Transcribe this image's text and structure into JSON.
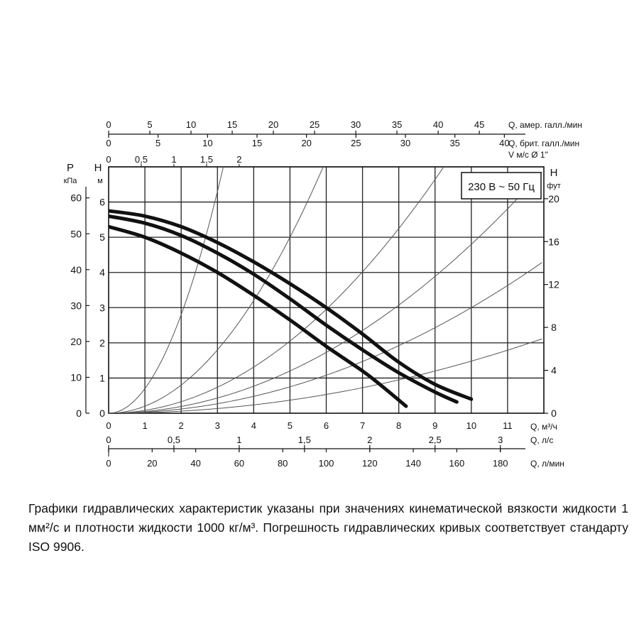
{
  "chart_data": {
    "type": "line",
    "legend_box": "230 В ~ 50 Гц",
    "axes": {
      "x_main": {
        "label": "Q, м³/ч",
        "range": [
          0,
          12
        ],
        "ticks": [
          "0",
          "1",
          "2",
          "3",
          "4",
          "5",
          "6",
          "7",
          "8",
          "9",
          "10",
          "11"
        ]
      },
      "x_ls": {
        "label": "Q, л/с",
        "ticks": [
          {
            "v": 0,
            "t": "0"
          },
          {
            "v": 0.5,
            "t": "0,5"
          },
          {
            "v": 1,
            "t": "1"
          },
          {
            "v": 1.5,
            "t": "1,5"
          },
          {
            "v": 2,
            "t": "2"
          },
          {
            "v": 2.5,
            "t": "2,5"
          },
          {
            "v": 3,
            "t": "3"
          }
        ]
      },
      "x_lmin": {
        "label": "Q, л/мин",
        "ticks": [
          {
            "v": 0,
            "t": "0"
          },
          {
            "v": 20,
            "t": "20"
          },
          {
            "v": 40,
            "t": "40"
          },
          {
            "v": 60,
            "t": "60"
          },
          {
            "v": 80,
            "t": "80"
          },
          {
            "v": 100,
            "t": "100"
          },
          {
            "v": 120,
            "t": "120"
          },
          {
            "v": 140,
            "t": "140"
          },
          {
            "v": 160,
            "t": "160"
          },
          {
            "v": 180,
            "t": "180"
          }
        ]
      },
      "x_us_gpm": {
        "label": "Q, амер. галл./мин",
        "ticks": [
          {
            "v": 0,
            "t": "0"
          },
          {
            "v": 5,
            "t": "5"
          },
          {
            "v": 10,
            "t": "10"
          },
          {
            "v": 15,
            "t": "15"
          },
          {
            "v": 20,
            "t": "20"
          },
          {
            "v": 25,
            "t": "25"
          },
          {
            "v": 30,
            "t": "30"
          },
          {
            "v": 35,
            "t": "35"
          },
          {
            "v": 40,
            "t": "40"
          },
          {
            "v": 45,
            "t": "45"
          }
        ]
      },
      "x_uk_gpm": {
        "label": "Q, брит. галл./мин",
        "ticks": [
          {
            "v": 0,
            "t": "0"
          },
          {
            "v": 5,
            "t": "5"
          },
          {
            "v": 10,
            "t": "10"
          },
          {
            "v": 15,
            "t": "15"
          },
          {
            "v": 20,
            "t": "20"
          },
          {
            "v": 25,
            "t": "25"
          },
          {
            "v": 30,
            "t": "30"
          },
          {
            "v": 35,
            "t": "35"
          },
          {
            "v": 40,
            "t": "40"
          }
        ]
      },
      "x_velocity": {
        "label": "V м/с Ø 1\"",
        "ticks": [
          {
            "v": 0,
            "t": "0"
          },
          {
            "v": 0.5,
            "t": "0,5"
          },
          {
            "v": 1,
            "t": "1"
          },
          {
            "v": 1.5,
            "t": "1,5"
          },
          {
            "v": 2,
            "t": "2"
          }
        ]
      },
      "y_main": {
        "label_top": "H",
        "unit": "м",
        "range": [
          0,
          7
        ],
        "ticks": [
          "0",
          "1",
          "2",
          "3",
          "4",
          "5",
          "6"
        ]
      },
      "y_kpa": {
        "label_top": "P",
        "unit": "кПа",
        "ticks": [
          "0",
          "10",
          "20",
          "30",
          "40",
          "50",
          "60"
        ]
      },
      "y_ft": {
        "label_top": "H",
        "unit": "фут",
        "ticks": [
          "0",
          "4",
          "8",
          "12",
          "16",
          "20"
        ]
      }
    },
    "series": [
      {
        "values": [
          [
            0,
            5.75
          ],
          [
            1,
            5.6
          ],
          [
            2,
            5.3
          ],
          [
            3,
            4.85
          ],
          [
            4,
            4.3
          ],
          [
            5,
            3.68
          ],
          [
            6,
            3.0
          ],
          [
            7,
            2.25
          ],
          [
            8,
            1.45
          ],
          [
            9,
            0.82
          ],
          [
            10,
            0.4
          ]
        ]
      },
      {
        "values": [
          [
            0,
            5.6
          ],
          [
            1,
            5.4
          ],
          [
            2,
            5.05
          ],
          [
            3,
            4.55
          ],
          [
            4,
            3.95
          ],
          [
            5,
            3.25
          ],
          [
            6,
            2.5
          ],
          [
            7,
            1.8
          ],
          [
            8,
            1.15
          ],
          [
            9,
            0.6
          ],
          [
            9.6,
            0.32
          ]
        ]
      },
      {
        "values": [
          [
            0,
            5.3
          ],
          [
            1,
            5.0
          ],
          [
            2,
            4.55
          ],
          [
            3,
            4.0
          ],
          [
            4,
            3.35
          ],
          [
            5,
            2.65
          ],
          [
            6,
            1.9
          ],
          [
            7,
            1.2
          ],
          [
            7.5,
            0.8
          ],
          [
            8.2,
            0.2
          ]
        ]
      }
    ],
    "system_curves": [
      {
        "k": 0.7
      },
      {
        "k": 0.2
      },
      {
        "k": 0.082
      },
      {
        "k": 0.048
      },
      {
        "k": 0.03
      },
      {
        "k": 0.0148
      }
    ]
  },
  "description": {
    "text": "Графики гидравлических характеристик указаны при значениях кинематической вязкости жидкости 1 мм²/с и плотности жидкости 1000 кг/м³. Погрешность гидравлических кривых соответствует стандарту ISO 9906."
  }
}
